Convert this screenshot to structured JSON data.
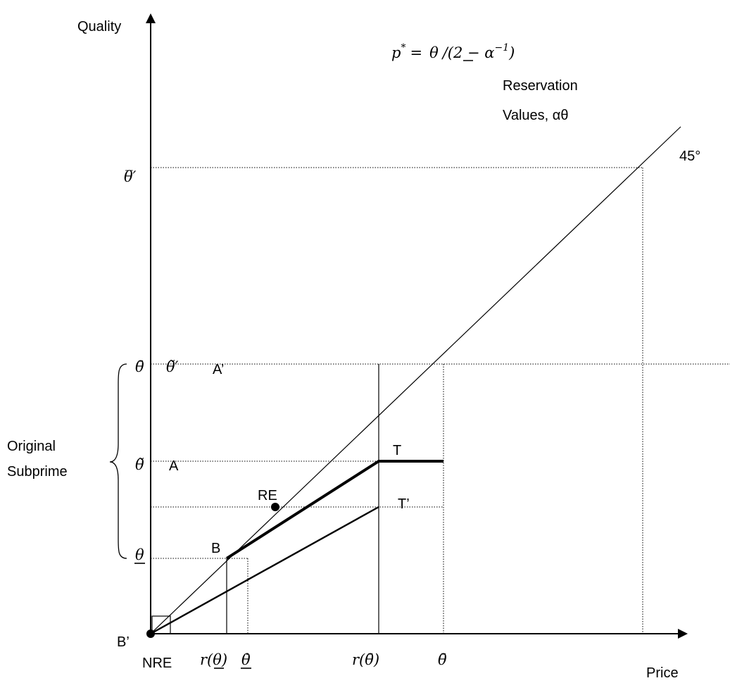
{
  "axes": {
    "y_label": "Quality",
    "x_label": "Price"
  },
  "formula": {
    "lhs": "p",
    "sup": "*",
    "eq": "=",
    "theta": "θ",
    "rest": "/(2 − α",
    "exp": "−1",
    "close": ")"
  },
  "reservation": {
    "line1": "Reservation",
    "line2": "Values, αθ"
  },
  "angle_label": "45°",
  "y_ticks": {
    "theta_bar_prime": "θ̅′",
    "theta_bar": "θ̄",
    "theta_tilde_prime": "θ̃′",
    "theta_tilde": "θ̃",
    "theta_under": "θ"
  },
  "points": {
    "a_prime": "A’",
    "a": "A",
    "t": "T",
    "t_prime": "T’",
    "re": "RE",
    "b": "B",
    "b_prime": "B’",
    "nre": "NRE"
  },
  "x_ticks": {
    "r_under": "r(θ)",
    "r_under_r": "r(",
    "r_under_theta": "θ",
    "r_under_close": ")",
    "theta_dot": "θ̇",
    "r_bar_r": "r(",
    "r_bar_theta": "θ̄",
    "r_bar_close": ")",
    "theta_bar": "θ̄"
  },
  "bracket_label": {
    "line1": "Original",
    "line2": "Subprime"
  }
}
